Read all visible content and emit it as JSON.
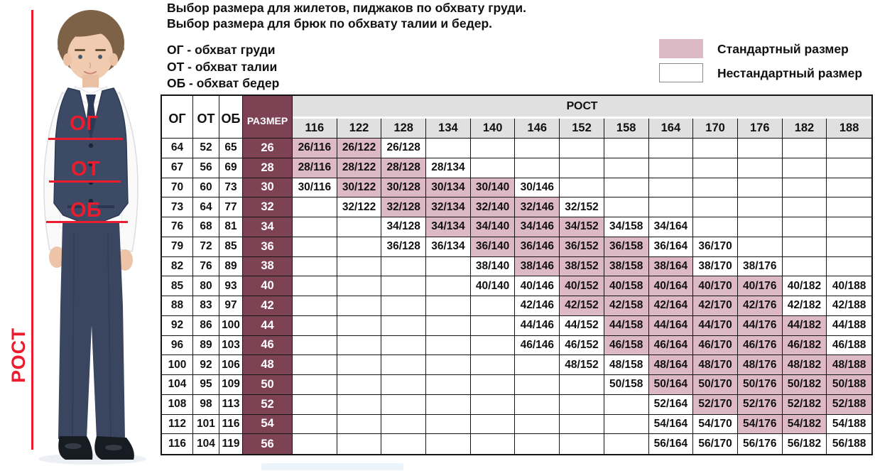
{
  "header": {
    "title_line1": "Выбор размера для жилетов, пиджаков по обхвату груди.",
    "title_line2": "Выбор размера для брюк по обхвату талии и бедер.",
    "abbreviations": [
      "ОГ - обхват груди",
      "ОТ - обхват талии",
      "ОБ - обхват бедер"
    ]
  },
  "legend": {
    "standard_label": "Стандартный размер",
    "nonstandard_label": "Нестандартный размер",
    "standard_color": "#ddb8c5",
    "nonstandard_color": "#ffffff"
  },
  "photo": {
    "chest_label": "ОГ",
    "waist_label": "ОТ",
    "hips_label": "ОБ",
    "height_label": "РОСТ",
    "annotation_color": "#eb1c2d"
  },
  "colors": {
    "standard_cell": "#ddb8c5",
    "size_column": "#7d4355",
    "header_gray": "#e0e0e0",
    "border": "#141414"
  },
  "chart_data": {
    "type": "table",
    "title": "Выбор размера для жилетов, пиджаков по обхвату груди. Выбор размера для брюк по обхвату талии и бедер.",
    "group_header": "РОСТ",
    "measure_headers": {
      "og": "ОГ",
      "ot": "ОТ",
      "ob": "ОБ",
      "size": "РАЗМЕР"
    },
    "heights": [
      116,
      122,
      128,
      134,
      140,
      146,
      152,
      158,
      164,
      170,
      176,
      182,
      188
    ],
    "legend": {
      "standard": "Стандартный размер",
      "nonstandard": "Нестандартный размер"
    },
    "rows": [
      {
        "og": 64,
        "ot": 52,
        "ob": 65,
        "size": 26,
        "cells": [
          {
            "h": 116,
            "std": true
          },
          {
            "h": 122,
            "std": true
          },
          {
            "h": 128,
            "std": false
          }
        ]
      },
      {
        "og": 67,
        "ot": 56,
        "ob": 69,
        "size": 28,
        "cells": [
          {
            "h": 116,
            "std": true
          },
          {
            "h": 122,
            "std": true
          },
          {
            "h": 128,
            "std": true
          },
          {
            "h": 134,
            "std": false
          }
        ]
      },
      {
        "og": 70,
        "ot": 60,
        "ob": 73,
        "size": 30,
        "cells": [
          {
            "h": 116,
            "std": false
          },
          {
            "h": 122,
            "std": true
          },
          {
            "h": 128,
            "std": true
          },
          {
            "h": 134,
            "std": true
          },
          {
            "h": 140,
            "std": true
          },
          {
            "h": 146,
            "std": false
          }
        ]
      },
      {
        "og": 73,
        "ot": 64,
        "ob": 77,
        "size": 32,
        "cells": [
          {
            "h": 122,
            "std": false
          },
          {
            "h": 128,
            "std": true
          },
          {
            "h": 134,
            "std": true
          },
          {
            "h": 140,
            "std": true
          },
          {
            "h": 146,
            "std": true
          },
          {
            "h": 152,
            "std": false
          }
        ]
      },
      {
        "og": 76,
        "ot": 68,
        "ob": 81,
        "size": 34,
        "cells": [
          {
            "h": 128,
            "std": false
          },
          {
            "h": 134,
            "std": true
          },
          {
            "h": 140,
            "std": true
          },
          {
            "h": 146,
            "std": true
          },
          {
            "h": 152,
            "std": true
          },
          {
            "h": 158,
            "std": false
          },
          {
            "h": 164,
            "std": false
          }
        ]
      },
      {
        "og": 79,
        "ot": 72,
        "ob": 85,
        "size": 36,
        "cells": [
          {
            "h": 128,
            "std": false
          },
          {
            "h": 134,
            "std": false
          },
          {
            "h": 140,
            "std": true
          },
          {
            "h": 146,
            "std": true
          },
          {
            "h": 152,
            "std": true
          },
          {
            "h": 158,
            "std": true
          },
          {
            "h": 164,
            "std": false
          },
          {
            "h": 170,
            "std": false
          }
        ]
      },
      {
        "og": 82,
        "ot": 76,
        "ob": 89,
        "size": 38,
        "cells": [
          {
            "h": 140,
            "std": false
          },
          {
            "h": 146,
            "std": true
          },
          {
            "h": 152,
            "std": true
          },
          {
            "h": 158,
            "std": true
          },
          {
            "h": 164,
            "std": true
          },
          {
            "h": 170,
            "std": false
          },
          {
            "h": 176,
            "std": false
          }
        ]
      },
      {
        "og": 85,
        "ot": 80,
        "ob": 93,
        "size": 40,
        "cells": [
          {
            "h": 140,
            "std": false
          },
          {
            "h": 146,
            "std": false
          },
          {
            "h": 152,
            "std": true
          },
          {
            "h": 158,
            "std": true
          },
          {
            "h": 164,
            "std": true
          },
          {
            "h": 170,
            "std": true
          },
          {
            "h": 176,
            "std": true
          },
          {
            "h": 182,
            "std": false
          },
          {
            "h": 188,
            "std": false
          }
        ]
      },
      {
        "og": 88,
        "ot": 83,
        "ob": 97,
        "size": 42,
        "cells": [
          {
            "h": 146,
            "std": false
          },
          {
            "h": 152,
            "std": true
          },
          {
            "h": 158,
            "std": true
          },
          {
            "h": 164,
            "std": true
          },
          {
            "h": 170,
            "std": true
          },
          {
            "h": 176,
            "std": true
          },
          {
            "h": 182,
            "std": false
          },
          {
            "h": 188,
            "std": false
          }
        ]
      },
      {
        "og": 92,
        "ot": 86,
        "ob": 100,
        "size": 44,
        "cells": [
          {
            "h": 146,
            "std": false
          },
          {
            "h": 152,
            "std": false
          },
          {
            "h": 158,
            "std": true
          },
          {
            "h": 164,
            "std": true
          },
          {
            "h": 170,
            "std": true
          },
          {
            "h": 176,
            "std": true
          },
          {
            "h": 182,
            "std": true
          },
          {
            "h": 188,
            "std": false
          }
        ]
      },
      {
        "og": 96,
        "ot": 89,
        "ob": 103,
        "size": 46,
        "cells": [
          {
            "h": 146,
            "std": false
          },
          {
            "h": 152,
            "std": false
          },
          {
            "h": 158,
            "std": true
          },
          {
            "h": 164,
            "std": true
          },
          {
            "h": 170,
            "std": true
          },
          {
            "h": 176,
            "std": true
          },
          {
            "h": 182,
            "std": true
          },
          {
            "h": 188,
            "std": false
          }
        ]
      },
      {
        "og": 100,
        "ot": 92,
        "ob": 106,
        "size": 48,
        "cells": [
          {
            "h": 152,
            "std": false
          },
          {
            "h": 158,
            "std": false
          },
          {
            "h": 164,
            "std": true
          },
          {
            "h": 170,
            "std": true
          },
          {
            "h": 176,
            "std": true
          },
          {
            "h": 182,
            "std": true
          },
          {
            "h": 188,
            "std": true
          }
        ]
      },
      {
        "og": 104,
        "ot": 95,
        "ob": 109,
        "size": 50,
        "cells": [
          {
            "h": 158,
            "std": false
          },
          {
            "h": 164,
            "std": true
          },
          {
            "h": 170,
            "std": true
          },
          {
            "h": 176,
            "std": true
          },
          {
            "h": 182,
            "std": true
          },
          {
            "h": 188,
            "std": true
          }
        ]
      },
      {
        "og": 108,
        "ot": 98,
        "ob": 113,
        "size": 52,
        "cells": [
          {
            "h": 164,
            "std": false
          },
          {
            "h": 170,
            "std": true
          },
          {
            "h": 176,
            "std": true
          },
          {
            "h": 182,
            "std": true
          },
          {
            "h": 188,
            "std": true
          }
        ]
      },
      {
        "og": 112,
        "ot": 101,
        "ob": 116,
        "size": 54,
        "cells": [
          {
            "h": 164,
            "std": false
          },
          {
            "h": 170,
            "std": false
          },
          {
            "h": 176,
            "std": true
          },
          {
            "h": 182,
            "std": true
          },
          {
            "h": 188,
            "std": false
          }
        ]
      },
      {
        "og": 116,
        "ot": 104,
        "ob": 119,
        "size": 56,
        "cells": [
          {
            "h": 164,
            "std": false
          },
          {
            "h": 170,
            "std": false
          },
          {
            "h": 176,
            "std": false
          },
          {
            "h": 182,
            "std": false
          },
          {
            "h": 188,
            "std": false
          }
        ]
      }
    ]
  }
}
